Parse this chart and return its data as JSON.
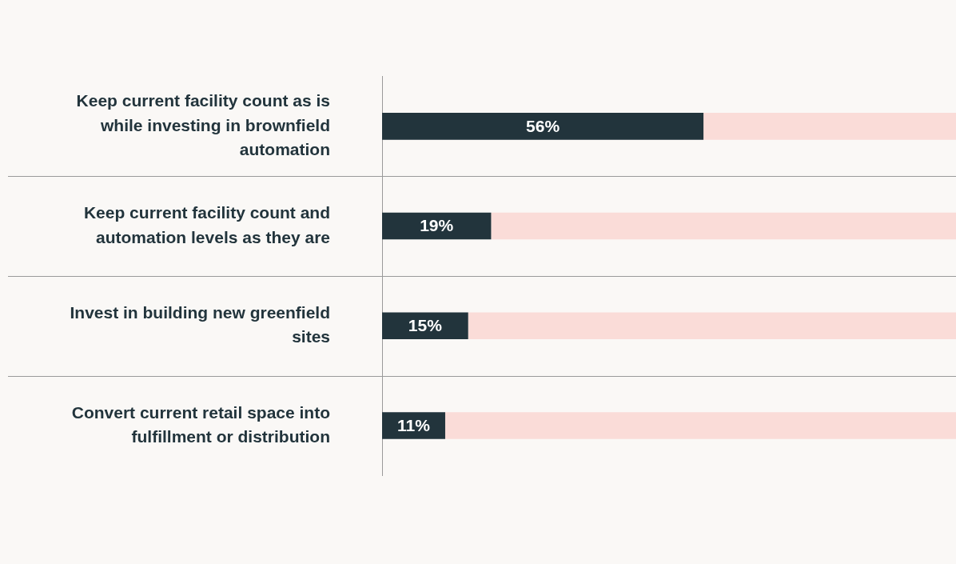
{
  "chart_data": {
    "type": "bar",
    "orientation": "horizontal",
    "stacked": true,
    "categories": [
      "Keep current facility count as is while investing in brownfield automation",
      "Keep current facility count and automation levels as they are",
      "Invest in building new greenfield sites",
      "Convert current retail space into fulfillment or distribution"
    ],
    "xlim": [
      0,
      100
    ],
    "tick_labels": "y",
    "legend": false,
    "series": [
      {
        "color": "#22343c",
        "values": [
          56,
          19,
          15,
          11
        ],
        "value_labels": [
          "56%",
          "19%",
          "15%",
          "11%"
        ]
      },
      {
        "color": "#fadcd8",
        "values": [
          44,
          81,
          85,
          89
        ]
      }
    ]
  }
}
